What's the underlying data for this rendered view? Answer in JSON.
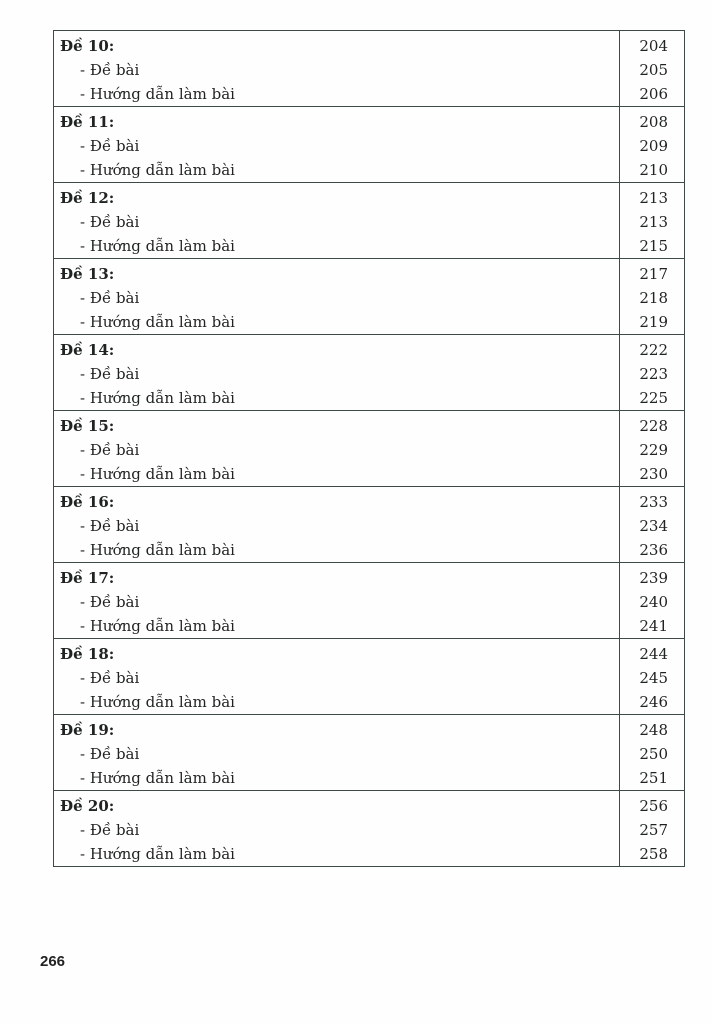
{
  "toc": [
    {
      "title": "Đề 10:",
      "page": "204",
      "items": [
        {
          "label": "- Đề bài",
          "page": "205"
        },
        {
          "label": "- Hướng dẫn làm bài",
          "page": "206"
        }
      ]
    },
    {
      "title": "Đề 11:",
      "page": "208",
      "items": [
        {
          "label": "- Đề bài",
          "page": "209"
        },
        {
          "label": "- Hướng dẫn làm bài",
          "page": "210"
        }
      ]
    },
    {
      "title": "Đề 12:",
      "page": "213",
      "items": [
        {
          "label": "- Đề bài",
          "page": "213"
        },
        {
          "label": "- Hướng dẫn làm bài",
          "page": "215"
        }
      ]
    },
    {
      "title": "Đề 13:",
      "page": "217",
      "items": [
        {
          "label": "- Đề bài",
          "page": "218"
        },
        {
          "label": "- Hướng dẫn làm bài",
          "page": "219"
        }
      ]
    },
    {
      "title": "Đề 14:",
      "page": "222",
      "items": [
        {
          "label": "- Đề bài",
          "page": "223"
        },
        {
          "label": "- Hướng dẫn làm bài",
          "page": "225"
        }
      ]
    },
    {
      "title": "Đề 15:",
      "page": "228",
      "items": [
        {
          "label": "- Đề bài",
          "page": "229"
        },
        {
          "label": "- Hướng dẫn làm bài",
          "page": "230"
        }
      ]
    },
    {
      "title": "Đề 16:",
      "page": "233",
      "items": [
        {
          "label": "- Đề bài",
          "page": "234"
        },
        {
          "label": "- Hướng dẫn làm bài",
          "page": "236"
        }
      ]
    },
    {
      "title": "Đề 17:",
      "page": "239",
      "items": [
        {
          "label": "- Đề bài",
          "page": "240"
        },
        {
          "label": "- Hướng dẫn làm bài",
          "page": "241"
        }
      ]
    },
    {
      "title": "Đề 18:",
      "page": "244",
      "items": [
        {
          "label": "- Đề bài",
          "page": "245"
        },
        {
          "label": "- Hướng dẫn làm bài",
          "page": "246"
        }
      ]
    },
    {
      "title": "Đề 19:",
      "page": "248",
      "items": [
        {
          "label": "- Đề bài",
          "page": "250"
        },
        {
          "label": "- Hướng dẫn làm bài",
          "page": "251"
        }
      ]
    },
    {
      "title": "Đề 20:",
      "page": "256",
      "items": [
        {
          "label": "- Đề bài",
          "page": "257"
        },
        {
          "label": "- Hướng dẫn làm bài",
          "page": "258"
        }
      ]
    }
  ],
  "page_number": "266"
}
